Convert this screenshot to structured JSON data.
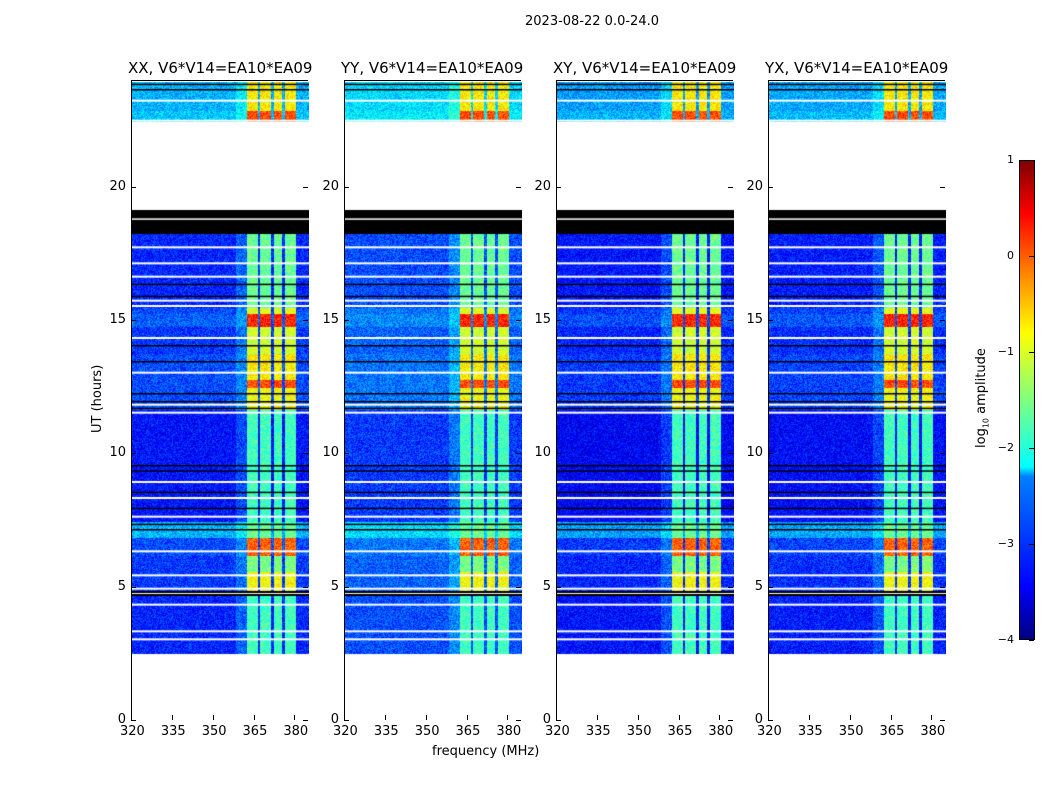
{
  "chart_data": {
    "type": "heatmap",
    "title": "2023-08-22 0.0-24.0",
    "xlabel": "frequency (MHz)",
    "ylabel": "UT (hours)",
    "xlim": [
      320,
      385
    ],
    "ylim": [
      0,
      24
    ],
    "xticks": [
      "320",
      "335",
      "350",
      "365",
      "380"
    ],
    "yticks": [
      "0",
      "5",
      "10",
      "15",
      "20"
    ],
    "colorbar": {
      "label_prefix": "log",
      "label_sub": "10",
      "label_suffix": " amplitude",
      "range": [
        -4,
        1
      ],
      "ticks": [
        "1",
        "0",
        "−1",
        "−2",
        "−3",
        "−4"
      ],
      "colormap": "jet"
    },
    "panels": [
      {
        "title": "XX, V6*V14=EA10*EA09",
        "bg_offset": 0
      },
      {
        "title": "YY, V6*V14=EA10*EA09",
        "bg_offset": 0.2
      },
      {
        "title": "XY, V6*V14=EA10*EA09",
        "bg_offset": -0.1
      },
      {
        "title": "YX, V6*V14=EA10*EA09",
        "bg_offset": -0.05
      }
    ],
    "channel_bands_mhz": [
      [
        362,
        366
      ],
      [
        367,
        371
      ],
      [
        372,
        375
      ],
      [
        376,
        380
      ]
    ],
    "segments_hours": [
      {
        "t": [
          2.55,
          4.7
        ],
        "bg": -3.2,
        "ch": -1.8
      },
      {
        "t": [
          4.7,
          4.9
        ],
        "flag": "black"
      },
      {
        "t": [
          4.9,
          5.6
        ],
        "bg": -3.1,
        "ch": -0.9
      },
      {
        "t": [
          5.6,
          6.2
        ],
        "bg": -3.1,
        "ch": -1.5
      },
      {
        "t": [
          6.2,
          6.9
        ],
        "bg": -3.0,
        "ch": -0.1
      },
      {
        "t": [
          6.9,
          7.5
        ],
        "bg": -2.5,
        "ch": -1.6
      },
      {
        "t": [
          7.5,
          11.7
        ],
        "bg": -3.3,
        "ch": -1.8
      },
      {
        "t": [
          11.7,
          12.5
        ],
        "bg": -3.0,
        "ch": -0.9
      },
      {
        "t": [
          12.5,
          12.8
        ],
        "bg": -3.0,
        "ch": 0
      },
      {
        "t": [
          12.8,
          13.8
        ],
        "bg": -3.0,
        "ch": -0.8
      },
      {
        "t": [
          13.8,
          14.8
        ],
        "bg": -3.1,
        "ch": -1.1
      },
      {
        "t": [
          14.8,
          15.3
        ],
        "bg": -2.9,
        "ch": 0.2
      },
      {
        "t": [
          15.3,
          15.5
        ],
        "bg": -3.0,
        "ch": -1
      },
      {
        "t": [
          15.5,
          18.3
        ],
        "bg": -3.2,
        "ch": -1.6
      },
      {
        "t": [
          18.3,
          19.2
        ],
        "flag": "black"
      },
      {
        "t": [
          22.5,
          22.9
        ],
        "bg": -2.4,
        "ch": 0
      },
      {
        "t": [
          22.9,
          24
        ],
        "bg": -2.5,
        "ch": -0.8
      }
    ],
    "flag_lines_white": [
      3.1,
      3.4,
      4.4,
      5.0,
      5.5,
      6.4,
      7.7,
      8.4,
      9.0,
      11.6,
      11.9,
      13.1,
      14.4,
      15.6,
      15.8,
      16.7,
      17.2,
      17.8,
      22.55,
      23.3
    ],
    "flag_lines_black": [
      7.2,
      7.4,
      8.0,
      8.6,
      9.4,
      9.6,
      11.75,
      12.0,
      12.3,
      13.5,
      14.1,
      15.95,
      16.4,
      18.6,
      23.7,
      23.9
    ]
  }
}
